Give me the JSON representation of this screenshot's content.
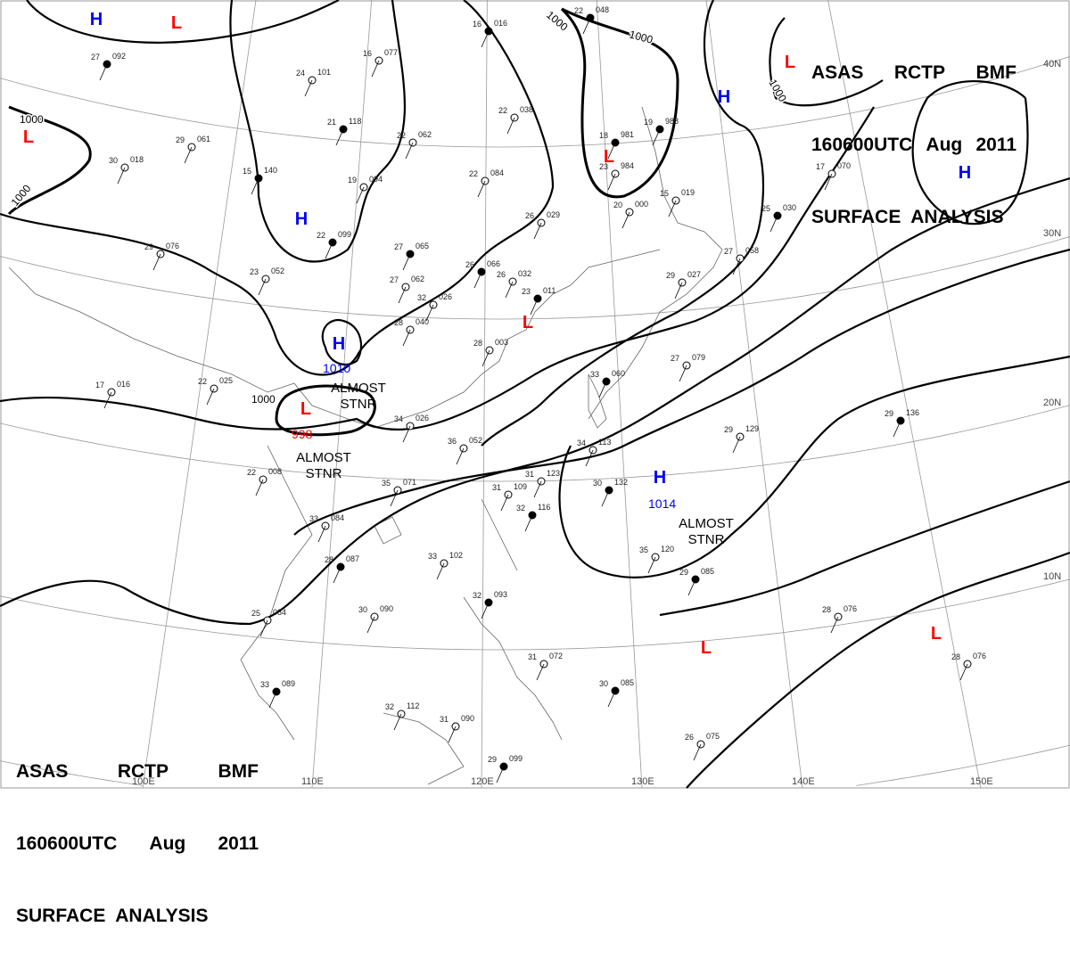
{
  "header": {
    "line1": [
      "ASAS",
      "RCTP",
      "BMF"
    ],
    "line2": [
      "160600UTC",
      "Aug",
      "2011"
    ],
    "line3": "SURFACE  ANALYSIS"
  },
  "grid": {
    "lon_labels": [
      "100E",
      "110E",
      "120E",
      "130E",
      "140E",
      "150E"
    ],
    "lat_labels": [
      "40N",
      "30N",
      "20N",
      "10N"
    ]
  },
  "colors": {
    "high": "#0000ff",
    "low": "#ff0000",
    "isobar": "#000000",
    "coast": "#555555"
  },
  "pressure_centers": [
    {
      "type": "H",
      "value": ""
    },
    {
      "type": "L",
      "value": ""
    },
    {
      "type": "L",
      "value": ""
    },
    {
      "type": "H",
      "value": ""
    },
    {
      "type": "H",
      "value": "1010"
    },
    {
      "type": "L",
      "value": "998"
    },
    {
      "type": "L",
      "value": ""
    },
    {
      "type": "L",
      "value": ""
    },
    {
      "type": "H",
      "value": ""
    },
    {
      "type": "L",
      "value": ""
    },
    {
      "type": "H",
      "value": ""
    },
    {
      "type": "H",
      "value": "1014"
    },
    {
      "type": "L",
      "value": ""
    },
    {
      "type": "L",
      "value": ""
    }
  ],
  "annotations": [
    "ALMOST\nSTNR",
    "ALMOST\nSTNR",
    "ALMOST\nSTNR"
  ],
  "isobar_labels": [
    "1000",
    "1000",
    "1000",
    "1000",
    "1000",
    "1000"
  ],
  "stations": [
    {
      "t": "27",
      "p": "092"
    },
    {
      "t": "24",
      "p": "101"
    },
    {
      "t": "16",
      "p": "077"
    },
    {
      "t": "16",
      "p": "016"
    },
    {
      "t": "29",
      "p": "061"
    },
    {
      "t": "30",
      "p": "018"
    },
    {
      "t": "21",
      "p": "118"
    },
    {
      "t": "22",
      "p": "062"
    },
    {
      "t": "22",
      "p": "038"
    },
    {
      "t": "15",
      "p": "140"
    },
    {
      "t": "19",
      "p": "094"
    },
    {
      "t": "22",
      "p": "084"
    },
    {
      "t": "22",
      "p": "099"
    },
    {
      "t": "29",
      "p": "076"
    },
    {
      "t": "26",
      "p": "029"
    },
    {
      "t": "27",
      "p": "065"
    },
    {
      "t": "23",
      "p": "052"
    },
    {
      "t": "27",
      "p": "062"
    },
    {
      "t": "26",
      "p": "066"
    },
    {
      "t": "26",
      "p": "032"
    },
    {
      "t": "32",
      "p": "026"
    },
    {
      "t": "23",
      "p": "011"
    },
    {
      "t": "28",
      "p": "040"
    },
    {
      "t": "28",
      "p": "003"
    },
    {
      "t": "18",
      "p": "981"
    },
    {
      "t": "23",
      "p": "984"
    },
    {
      "t": "20",
      "p": "000"
    },
    {
      "t": "19",
      "p": "988"
    },
    {
      "t": "15",
      "p": "019"
    },
    {
      "t": "17",
      "p": "070"
    },
    {
      "t": "25",
      "p": "030"
    },
    {
      "t": "27",
      "p": "058"
    },
    {
      "t": "29",
      "p": "027"
    },
    {
      "t": "22",
      "p": "048"
    },
    {
      "t": "34",
      "p": "026"
    },
    {
      "t": "36",
      "p": "052"
    },
    {
      "t": "33",
      "p": "060"
    },
    {
      "t": "27",
      "p": "079"
    },
    {
      "t": "29",
      "p": "129"
    },
    {
      "t": "29",
      "p": "136"
    },
    {
      "t": "34",
      "p": "113"
    },
    {
      "t": "31",
      "p": "123"
    },
    {
      "t": "30",
      "p": "132"
    },
    {
      "t": "35",
      "p": "071"
    },
    {
      "t": "31",
      "p": "109"
    },
    {
      "t": "32",
      "p": "116"
    },
    {
      "t": "22",
      "p": "008"
    },
    {
      "t": "33",
      "p": "084"
    },
    {
      "t": "28",
      "p": "087"
    },
    {
      "t": "33",
      "p": "102"
    },
    {
      "t": "35",
      "p": "120"
    },
    {
      "t": "29",
      "p": "085"
    },
    {
      "t": "25",
      "p": "084"
    },
    {
      "t": "30",
      "p": "090"
    },
    {
      "t": "32",
      "p": "093"
    },
    {
      "t": "28",
      "p": "076"
    },
    {
      "t": "28",
      "p": "076"
    },
    {
      "t": "33",
      "p": "089"
    },
    {
      "t": "32",
      "p": "112"
    },
    {
      "t": "31",
      "p": "090"
    },
    {
      "t": "30",
      "p": "085"
    },
    {
      "t": "31",
      "p": "072"
    },
    {
      "t": "26",
      "p": "075"
    },
    {
      "t": "29",
      "p": "099"
    },
    {
      "t": "17",
      "p": "016"
    },
    {
      "t": "22",
      "p": "025"
    }
  ]
}
